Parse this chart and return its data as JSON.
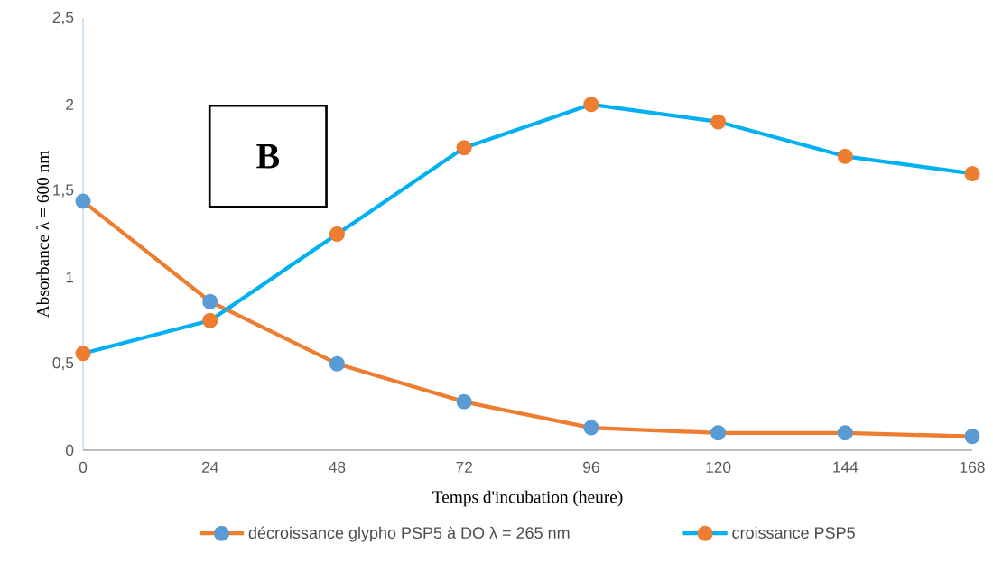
{
  "chart_data": {
    "type": "line",
    "xlabel": "Temps d'incubation (heure)",
    "ylabel": "Absorbance λ = 600 nm",
    "x": [
      0,
      24,
      48,
      72,
      96,
      120,
      144,
      168
    ],
    "xlim": [
      0,
      168
    ],
    "xticks": [
      0,
      24,
      48,
      72,
      96,
      120,
      144,
      168
    ],
    "ylim": [
      0,
      2.5
    ],
    "yticks": [
      0,
      {
        "value": 0.5,
        "label": "0,5"
      },
      1,
      {
        "value": 1.5,
        "label": "1,5"
      },
      2,
      {
        "value": 2.5,
        "label": "2,5"
      }
    ],
    "series": [
      {
        "name": "décroissance glypho PSP5 à DO λ = 265 nm",
        "color": "#ed7d31",
        "colors": [
          "#5b9bd5",
          "#5b9bd5",
          "#5b9bd5",
          "#5b9bd5",
          "#5b9bd5",
          "#5b9bd5",
          "#5b9bd5",
          "#5b9bd5"
        ],
        "values": [
          1.44,
          0.86,
          0.5,
          0.28,
          0.13,
          0.1,
          0.1,
          0.08
        ]
      },
      {
        "name": "croissance PSP5",
        "color": "#00b0f0",
        "colors": [
          "#ed7d31",
          "#ed7d31",
          "#ed7d31",
          "#ed7d31",
          "#ed7d31",
          "#ed7d31",
          "#ed7d31",
          "#ed7d31"
        ],
        "values": [
          0.56,
          0.75,
          1.25,
          1.75,
          2.0,
          1.9,
          1.7,
          1.6
        ]
      }
    ],
    "marker": "circle",
    "grid": false,
    "legend": "bottom",
    "annotations": [
      "B"
    ]
  }
}
